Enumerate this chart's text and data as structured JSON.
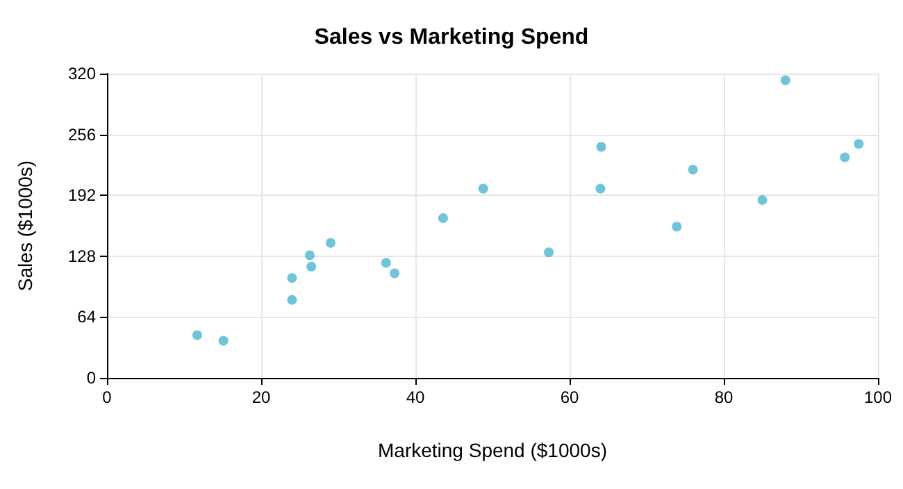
{
  "chart_data": {
    "type": "scatter",
    "title": "Sales vs Marketing Spend",
    "xlabel": "Marketing Spend ($1000s)",
    "ylabel": "Sales ($1000s)",
    "x": [
      11.7,
      15.1,
      24,
      24,
      26.3,
      26.5,
      29,
      36.2,
      37.3,
      43.6,
      48.8,
      57.3,
      64,
      64.1,
      73.9,
      76,
      85,
      88,
      95.7,
      97.5
    ],
    "values": [
      45,
      39,
      105,
      82,
      129,
      117,
      142,
      121,
      110,
      168,
      199,
      132,
      199,
      243,
      159,
      219,
      187,
      313,
      232,
      246
    ],
    "color": "#4ab6d2",
    "marker": "circle",
    "xlim": [
      0,
      100
    ],
    "xticks": [
      0,
      20,
      40,
      60,
      80,
      100
    ],
    "ylim": [
      0,
      320
    ],
    "yticks": [
      0,
      64,
      128,
      192,
      256,
      320
    ],
    "grid": true
  }
}
